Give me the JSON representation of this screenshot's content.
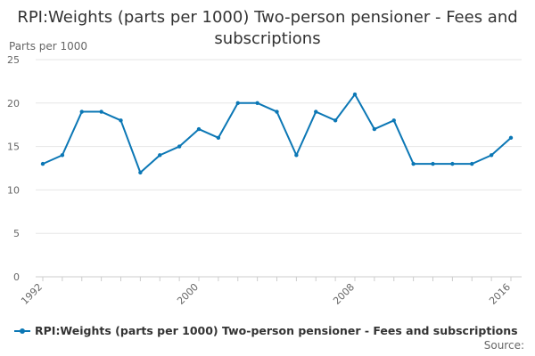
{
  "page": {
    "source_label": "Source:"
  },
  "chart_data": {
    "type": "line",
    "title": "RPI:Weights (parts per 1000) Two-person pensioner - Fees and subscriptions",
    "ylabel": "Parts per 1000",
    "xlabel": "",
    "x_range": [
      1992,
      2016
    ],
    "ylim": [
      0,
      25
    ],
    "y_ticks": [
      0,
      5,
      10,
      15,
      20,
      25
    ],
    "x_ticks": [
      1992,
      2000,
      2008,
      2016
    ],
    "grid": "horizontal",
    "legend_position": "bottom",
    "series": [
      {
        "name": "RPI:Weights (parts per 1000) Two-person pensioner - Fees and subscriptions",
        "color": "#0b77b5",
        "x": [
          1992,
          1993,
          1994,
          1995,
          1996,
          1997,
          1998,
          1999,
          2000,
          2001,
          2002,
          2003,
          2004,
          2005,
          2006,
          2007,
          2008,
          2009,
          2010,
          2011,
          2012,
          2013,
          2014,
          2015,
          2016
        ],
        "values": [
          13,
          14,
          19,
          19,
          18,
          12,
          14,
          15,
          17,
          16,
          20,
          20,
          19,
          14,
          19,
          18,
          21,
          17,
          18,
          13,
          13,
          13,
          13,
          14,
          16
        ]
      }
    ]
  }
}
